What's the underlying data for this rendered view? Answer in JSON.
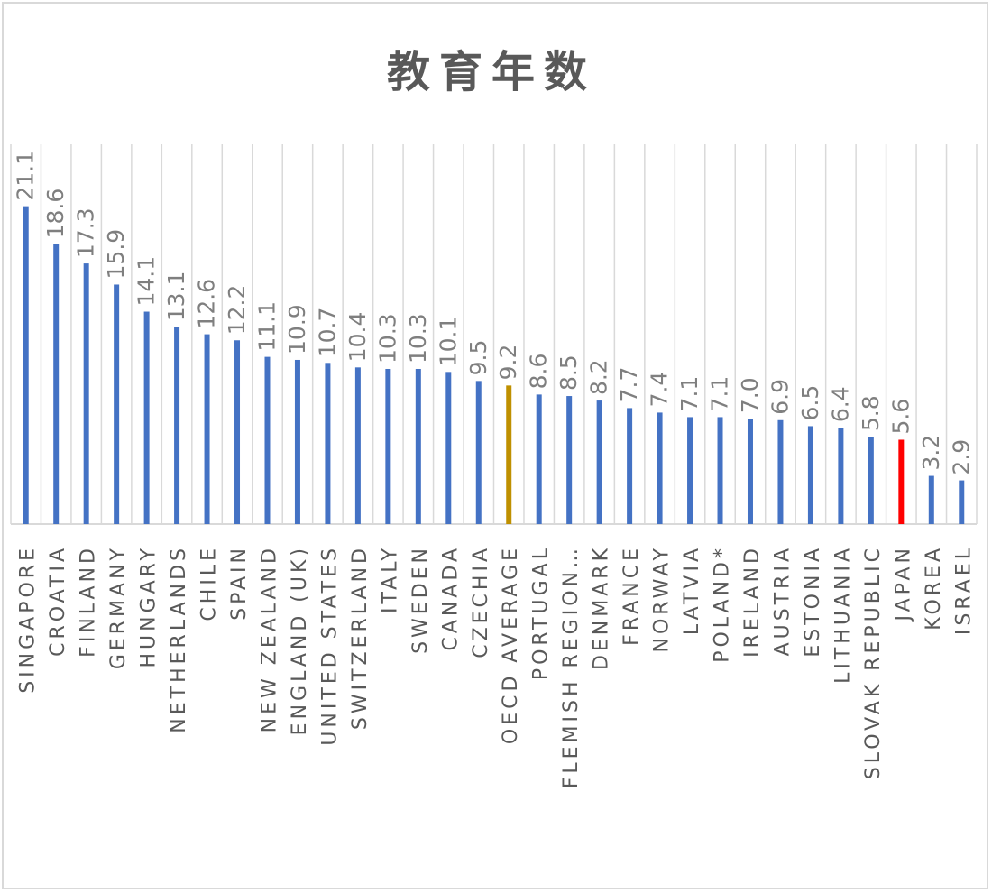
{
  "chart_data": {
    "type": "bar",
    "title": "教育年数",
    "xlabel": "",
    "ylabel": "",
    "ylim": [
      0,
      25
    ],
    "grid": "vertical",
    "legend": "none",
    "categories": [
      "SINGAPORE",
      "CROATIA",
      "FINLAND",
      "GERMANY",
      "HUNGARY",
      "NETHERLANDS",
      "CHILE",
      "SPAIN",
      "NEW ZEALAND",
      "ENGLAND (UK)",
      "UNITED STATES",
      "SWITZERLAND",
      "ITALY",
      "SWEDEN",
      "CANADA",
      "CZECHIA",
      "OECD AVERAGE",
      "PORTUGAL",
      "FLEMISH REGION…",
      "DENMARK",
      "FRANCE",
      "NORWAY",
      "LATVIA",
      "POLAND*",
      "IRELAND",
      "AUSTRIA",
      "ESTONIA",
      "LITHUANIA",
      "SLOVAK REPUBLIC",
      "JAPAN",
      "KOREA",
      "ISRAEL"
    ],
    "values": [
      21.1,
      18.6,
      17.3,
      15.9,
      14.1,
      13.1,
      12.6,
      12.2,
      11.1,
      10.9,
      10.7,
      10.4,
      10.3,
      10.3,
      10.1,
      9.5,
      9.2,
      8.6,
      8.5,
      8.2,
      7.7,
      7.4,
      7.1,
      7.1,
      7.0,
      6.9,
      6.5,
      6.4,
      5.8,
      5.6,
      3.2,
      2.9
    ],
    "data_labels": [
      "21.1",
      "18.6",
      "17.3",
      "15.9",
      "14.1",
      "13.1",
      "12.6",
      "12.2",
      "11.1",
      "10.9",
      "10.7",
      "10.4",
      "10.3",
      "10.3",
      "10.1",
      "9.5",
      "9.2",
      "8.6",
      "8.5",
      "8.2",
      "7.7",
      "7.4",
      "7.1",
      "7.1",
      "7.0",
      "6.9",
      "6.5",
      "6.4",
      "5.8",
      "5.6",
      "3.2",
      "2.9"
    ],
    "colors": {
      "default": "#4472c4",
      "highlight": {
        "OECD AVERAGE": "#bf9000",
        "JAPAN": "#ff0000"
      },
      "label": "#7f7f7f",
      "category_text": "#595959",
      "grid": "#d9d9d9"
    }
  }
}
